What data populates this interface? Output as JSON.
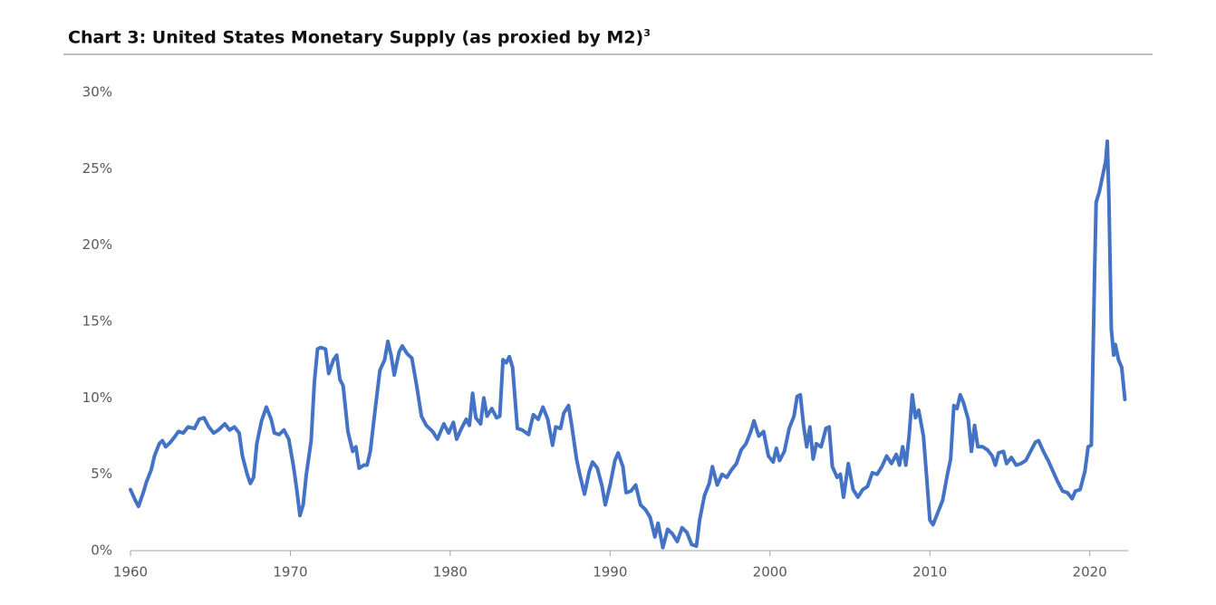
{
  "chart_data": {
    "type": "line",
    "title": "Chart 3: United States Monetary Supply (as proxied by M2)",
    "title_note": "3",
    "x": [
      1960.0,
      1960.3,
      1960.5,
      1960.8,
      1961.0,
      1961.3,
      1961.5,
      1961.8,
      1962.0,
      1962.2,
      1962.5,
      1962.8,
      1963.0,
      1963.3,
      1963.6,
      1964.0,
      1964.3,
      1964.6,
      1964.9,
      1965.2,
      1965.5,
      1965.9,
      1966.2,
      1966.5,
      1966.8,
      1967.0,
      1967.3,
      1967.5,
      1967.7,
      1967.9,
      1968.2,
      1968.5,
      1968.8,
      1969.0,
      1969.3,
      1969.6,
      1969.9,
      1970.2,
      1970.4,
      1970.6,
      1970.8,
      1971.0,
      1971.3,
      1971.5,
      1971.7,
      1971.9,
      1972.2,
      1972.4,
      1972.7,
      1972.9,
      1973.1,
      1973.3,
      1973.6,
      1973.9,
      1974.1,
      1974.3,
      1974.6,
      1974.8,
      1975.0,
      1975.3,
      1975.6,
      1975.9,
      1976.1,
      1976.3,
      1976.5,
      1976.8,
      1977.0,
      1977.3,
      1977.6,
      1977.9,
      1978.2,
      1978.5,
      1978.9,
      1979.2,
      1979.6,
      1979.9,
      1980.2,
      1980.4,
      1980.7,
      1981.0,
      1981.2,
      1981.4,
      1981.6,
      1981.9,
      1982.1,
      1982.3,
      1982.6,
      1982.9,
      1983.1,
      1983.3,
      1983.5,
      1983.7,
      1983.9,
      1984.2,
      1984.5,
      1984.9,
      1985.2,
      1985.5,
      1985.8,
      1986.1,
      1986.4,
      1986.6,
      1986.9,
      1987.1,
      1987.4,
      1987.6,
      1987.9,
      1988.1,
      1988.4,
      1988.7,
      1988.9,
      1989.2,
      1989.5,
      1989.7,
      1990.0,
      1990.3,
      1990.5,
      1990.8,
      1991.0,
      1991.3,
      1991.6,
      1991.9,
      1992.2,
      1992.5,
      1992.8,
      1993.0,
      1993.3,
      1993.6,
      1993.9,
      1994.2,
      1994.5,
      1994.8,
      1995.1,
      1995.4,
      1995.6,
      1995.9,
      1996.2,
      1996.4,
      1996.7,
      1997.0,
      1997.3,
      1997.6,
      1997.9,
      1998.2,
      1998.5,
      1998.8,
      1999.0,
      1999.3,
      1999.6,
      1999.9,
      2000.2,
      2000.4,
      2000.6,
      2000.9,
      2001.2,
      2001.5,
      2001.7,
      2001.9,
      2002.1,
      2002.3,
      2002.5,
      2002.7,
      2002.9,
      2003.2,
      2003.5,
      2003.7,
      2003.9,
      2004.2,
      2004.4,
      2004.6,
      2004.9,
      2005.2,
      2005.5,
      2005.8,
      2006.1,
      2006.4,
      2006.7,
      2007.0,
      2007.3,
      2007.6,
      2007.9,
      2008.1,
      2008.3,
      2008.5,
      2008.7,
      2008.9,
      2009.1,
      2009.3,
      2009.6,
      2009.8,
      2010.0,
      2010.2,
      2010.5,
      2010.8,
      2011.1,
      2011.3,
      2011.5,
      2011.7,
      2011.9,
      2012.1,
      2012.4,
      2012.6,
      2012.8,
      2013.0,
      2013.3,
      2013.6,
      2013.9,
      2014.1,
      2014.3,
      2014.6,
      2014.8,
      2015.1,
      2015.4,
      2015.7,
      2016.0,
      2016.3,
      2016.6,
      2016.8,
      2017.1,
      2017.4,
      2017.7,
      2018.0,
      2018.3,
      2018.6,
      2018.9,
      2019.1,
      2019.4,
      2019.7,
      2019.9,
      2020.1,
      2020.3,
      2020.4,
      2020.6,
      2020.8,
      2021.0,
      2021.1,
      2021.2,
      2021.35,
      2021.5,
      2021.6,
      2021.8,
      2022.0,
      2022.2
    ],
    "series": [
      {
        "color": "#4472c4",
        "values": [
          4.0,
          3.3,
          2.9,
          3.8,
          4.5,
          5.3,
          6.2,
          7.0,
          7.2,
          6.8,
          7.1,
          7.5,
          7.8,
          7.7,
          8.1,
          8.0,
          8.6,
          8.7,
          8.1,
          7.7,
          7.9,
          8.3,
          7.9,
          8.1,
          7.7,
          6.2,
          5.0,
          4.4,
          4.8,
          7.0,
          8.5,
          9.4,
          8.6,
          7.7,
          7.6,
          7.9,
          7.3,
          5.5,
          4.0,
          2.3,
          3.0,
          5.0,
          7.2,
          11.0,
          13.2,
          13.3,
          13.2,
          11.6,
          12.5,
          12.8,
          11.2,
          10.8,
          7.8,
          6.5,
          6.8,
          5.4,
          5.6,
          5.6,
          6.5,
          9.2,
          11.8,
          12.5,
          13.7,
          12.8,
          11.5,
          13.0,
          13.4,
          12.9,
          12.6,
          10.8,
          8.8,
          8.2,
          7.8,
          7.3,
          8.3,
          7.7,
          8.4,
          7.3,
          8.0,
          8.6,
          8.2,
          10.3,
          8.7,
          8.3,
          10.0,
          8.8,
          9.3,
          8.7,
          8.8,
          12.5,
          12.3,
          12.7,
          12.0,
          8.0,
          7.9,
          7.6,
          8.9,
          8.6,
          9.4,
          8.6,
          6.9,
          8.1,
          8.0,
          9.0,
          9.5,
          8.2,
          6.0,
          5.0,
          3.7,
          5.2,
          5.8,
          5.4,
          4.2,
          3.0,
          4.3,
          5.9,
          6.4,
          5.5,
          3.8,
          3.9,
          4.3,
          3.0,
          2.7,
          2.2,
          0.9,
          1.8,
          0.2,
          1.4,
          1.1,
          0.6,
          1.5,
          1.2,
          0.4,
          0.3,
          2.0,
          3.6,
          4.4,
          5.5,
          4.3,
          5.0,
          4.8,
          5.3,
          5.7,
          6.6,
          7.0,
          7.8,
          8.5,
          7.5,
          7.8,
          6.2,
          5.8,
          6.7,
          5.9,
          6.5,
          8.0,
          8.8,
          10.1,
          10.2,
          8.2,
          6.8,
          8.1,
          6.0,
          7.0,
          6.8,
          8.0,
          8.1,
          5.5,
          4.8,
          5.0,
          3.5,
          5.7,
          4.0,
          3.5,
          4.0,
          4.2,
          5.1,
          5.0,
          5.5,
          6.2,
          5.7,
          6.3,
          5.6,
          6.8,
          5.6,
          7.5,
          10.2,
          8.7,
          9.2,
          7.5,
          4.8,
          2.0,
          1.7,
          2.5,
          3.3,
          5.0,
          6.0,
          9.5,
          9.3,
          10.2,
          9.7,
          8.6,
          6.5,
          8.2,
          6.8,
          6.8,
          6.6,
          6.2,
          5.6,
          6.4,
          6.5,
          5.7,
          6.1,
          5.6,
          5.7,
          5.9,
          6.5,
          7.1,
          7.2,
          6.5,
          5.9,
          5.2,
          4.5,
          3.9,
          3.8,
          3.4,
          3.9,
          4.0,
          5.2,
          6.8,
          6.9,
          18.0,
          22.8,
          23.5,
          24.5,
          25.5,
          26.8,
          23.0,
          14.5,
          12.8,
          13.5,
          12.5,
          12.0,
          9.9
        ]
      }
    ],
    "xlim": [
      1960,
      2022.4
    ],
    "xticks": [
      1960,
      1970,
      1980,
      1990,
      2000,
      2010,
      2020
    ],
    "ylim": [
      0,
      30
    ],
    "yticks": [
      {
        "value": 0,
        "label": "0%"
      },
      {
        "value": 5,
        "label": "5%"
      },
      {
        "value": 10,
        "label": "10%"
      },
      {
        "value": 15,
        "label": "15%"
      },
      {
        "value": 20,
        "label": "20%"
      },
      {
        "value": 25,
        "label": "25%"
      },
      {
        "value": 30,
        "label": "30%"
      }
    ],
    "grid": false
  }
}
